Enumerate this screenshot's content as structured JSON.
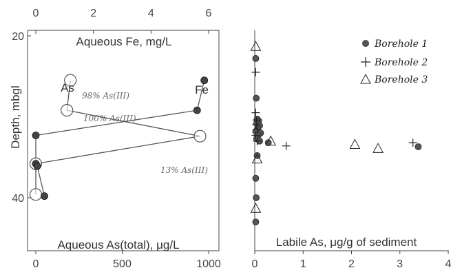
{
  "chart_data": [
    {
      "type": "line",
      "ylabel": "Depth, mbgl",
      "ylim": [
        20,
        45
      ],
      "y_ticks": [
        20,
        40
      ],
      "x_top": {
        "label": "Aqueous Fe, mg/L",
        "lim": [
          0,
          6
        ],
        "ticks": [
          0,
          2,
          4,
          6
        ]
      },
      "x_bottom": {
        "label": "Aqueous As(total), μg/L",
        "lim": [
          0,
          1000
        ],
        "ticks": [
          0,
          500,
          1000
        ]
      },
      "series": [
        {
          "name": "As",
          "axis": "bottom",
          "marker": "open-circle",
          "points": [
            {
              "x": 200,
              "y": 25.5
            },
            {
              "x": 180,
              "y": 29.2
            },
            {
              "x": 950,
              "y": 32.4
            },
            {
              "x": 0,
              "y": 35.8
            },
            {
              "x": 0,
              "y": 39.6
            }
          ]
        },
        {
          "name": "Fe",
          "axis": "top",
          "marker": "filled-circle",
          "points": [
            {
              "x": 5.85,
              "y": 25.5
            },
            {
              "x": 5.6,
              "y": 29.2
            },
            {
              "x": 0,
              "y": 32.3
            },
            {
              "x": 0,
              "y": 35.8
            },
            {
              "x": 0.05,
              "y": 36.1
            },
            {
              "x": 0.3,
              "y": 39.8
            }
          ]
        }
      ],
      "annotations": [
        "98% As(III)",
        "100% As(III)",
        "13% As(III)"
      ]
    },
    {
      "type": "scatter",
      "xlabel": "Labile As, μg/g of sediment",
      "xlim": [
        0,
        4
      ],
      "ylim": [
        20,
        45
      ],
      "x_ticks": [
        0,
        1,
        2,
        3,
        4
      ],
      "legend": "top-right",
      "series": [
        {
          "name": "Borehole 1",
          "marker": "filled-circle",
          "points": [
            {
              "x": 0.02,
              "y": 22.8
            },
            {
              "x": 0.03,
              "y": 27.7
            },
            {
              "x": 0.05,
              "y": 30.3
            },
            {
              "x": 0.08,
              "y": 30.5
            },
            {
              "x": 0.04,
              "y": 30.8
            },
            {
              "x": 0.1,
              "y": 31.1
            },
            {
              "x": 0.06,
              "y": 31.5
            },
            {
              "x": 0.02,
              "y": 31.8
            },
            {
              "x": 0.12,
              "y": 32.0
            },
            {
              "x": 0.07,
              "y": 32.3
            },
            {
              "x": 0.04,
              "y": 32.7
            },
            {
              "x": 0.1,
              "y": 33.0
            },
            {
              "x": 0.28,
              "y": 33.2
            },
            {
              "x": 0.05,
              "y": 34.8
            },
            {
              "x": 3.38,
              "y": 33.7
            },
            {
              "x": 0.02,
              "y": 37.6
            },
            {
              "x": 0.03,
              "y": 40.0
            },
            {
              "x": 0.02,
              "y": 43.0
            }
          ]
        },
        {
          "name": "Borehole 2",
          "marker": "plus",
          "points": [
            {
              "x": 0.02,
              "y": 24.5
            },
            {
              "x": 0.02,
              "y": 29.5
            },
            {
              "x": 0.04,
              "y": 30.4
            },
            {
              "x": 0.03,
              "y": 31.0
            },
            {
              "x": 0.05,
              "y": 31.6
            },
            {
              "x": 0.02,
              "y": 32.3
            },
            {
              "x": 0.05,
              "y": 33.0
            },
            {
              "x": 0.65,
              "y": 33.6
            },
            {
              "x": 3.27,
              "y": 33.2
            }
          ]
        },
        {
          "name": "Borehole 3",
          "marker": "open-triangle",
          "points": [
            {
              "x": 0.02,
              "y": 21.3
            },
            {
              "x": 0.33,
              "y": 33.0
            },
            {
              "x": 2.07,
              "y": 33.4
            },
            {
              "x": 2.55,
              "y": 33.9
            },
            {
              "x": 0.05,
              "y": 35.2
            },
            {
              "x": 0.02,
              "y": 41.3
            }
          ]
        }
      ]
    }
  ]
}
